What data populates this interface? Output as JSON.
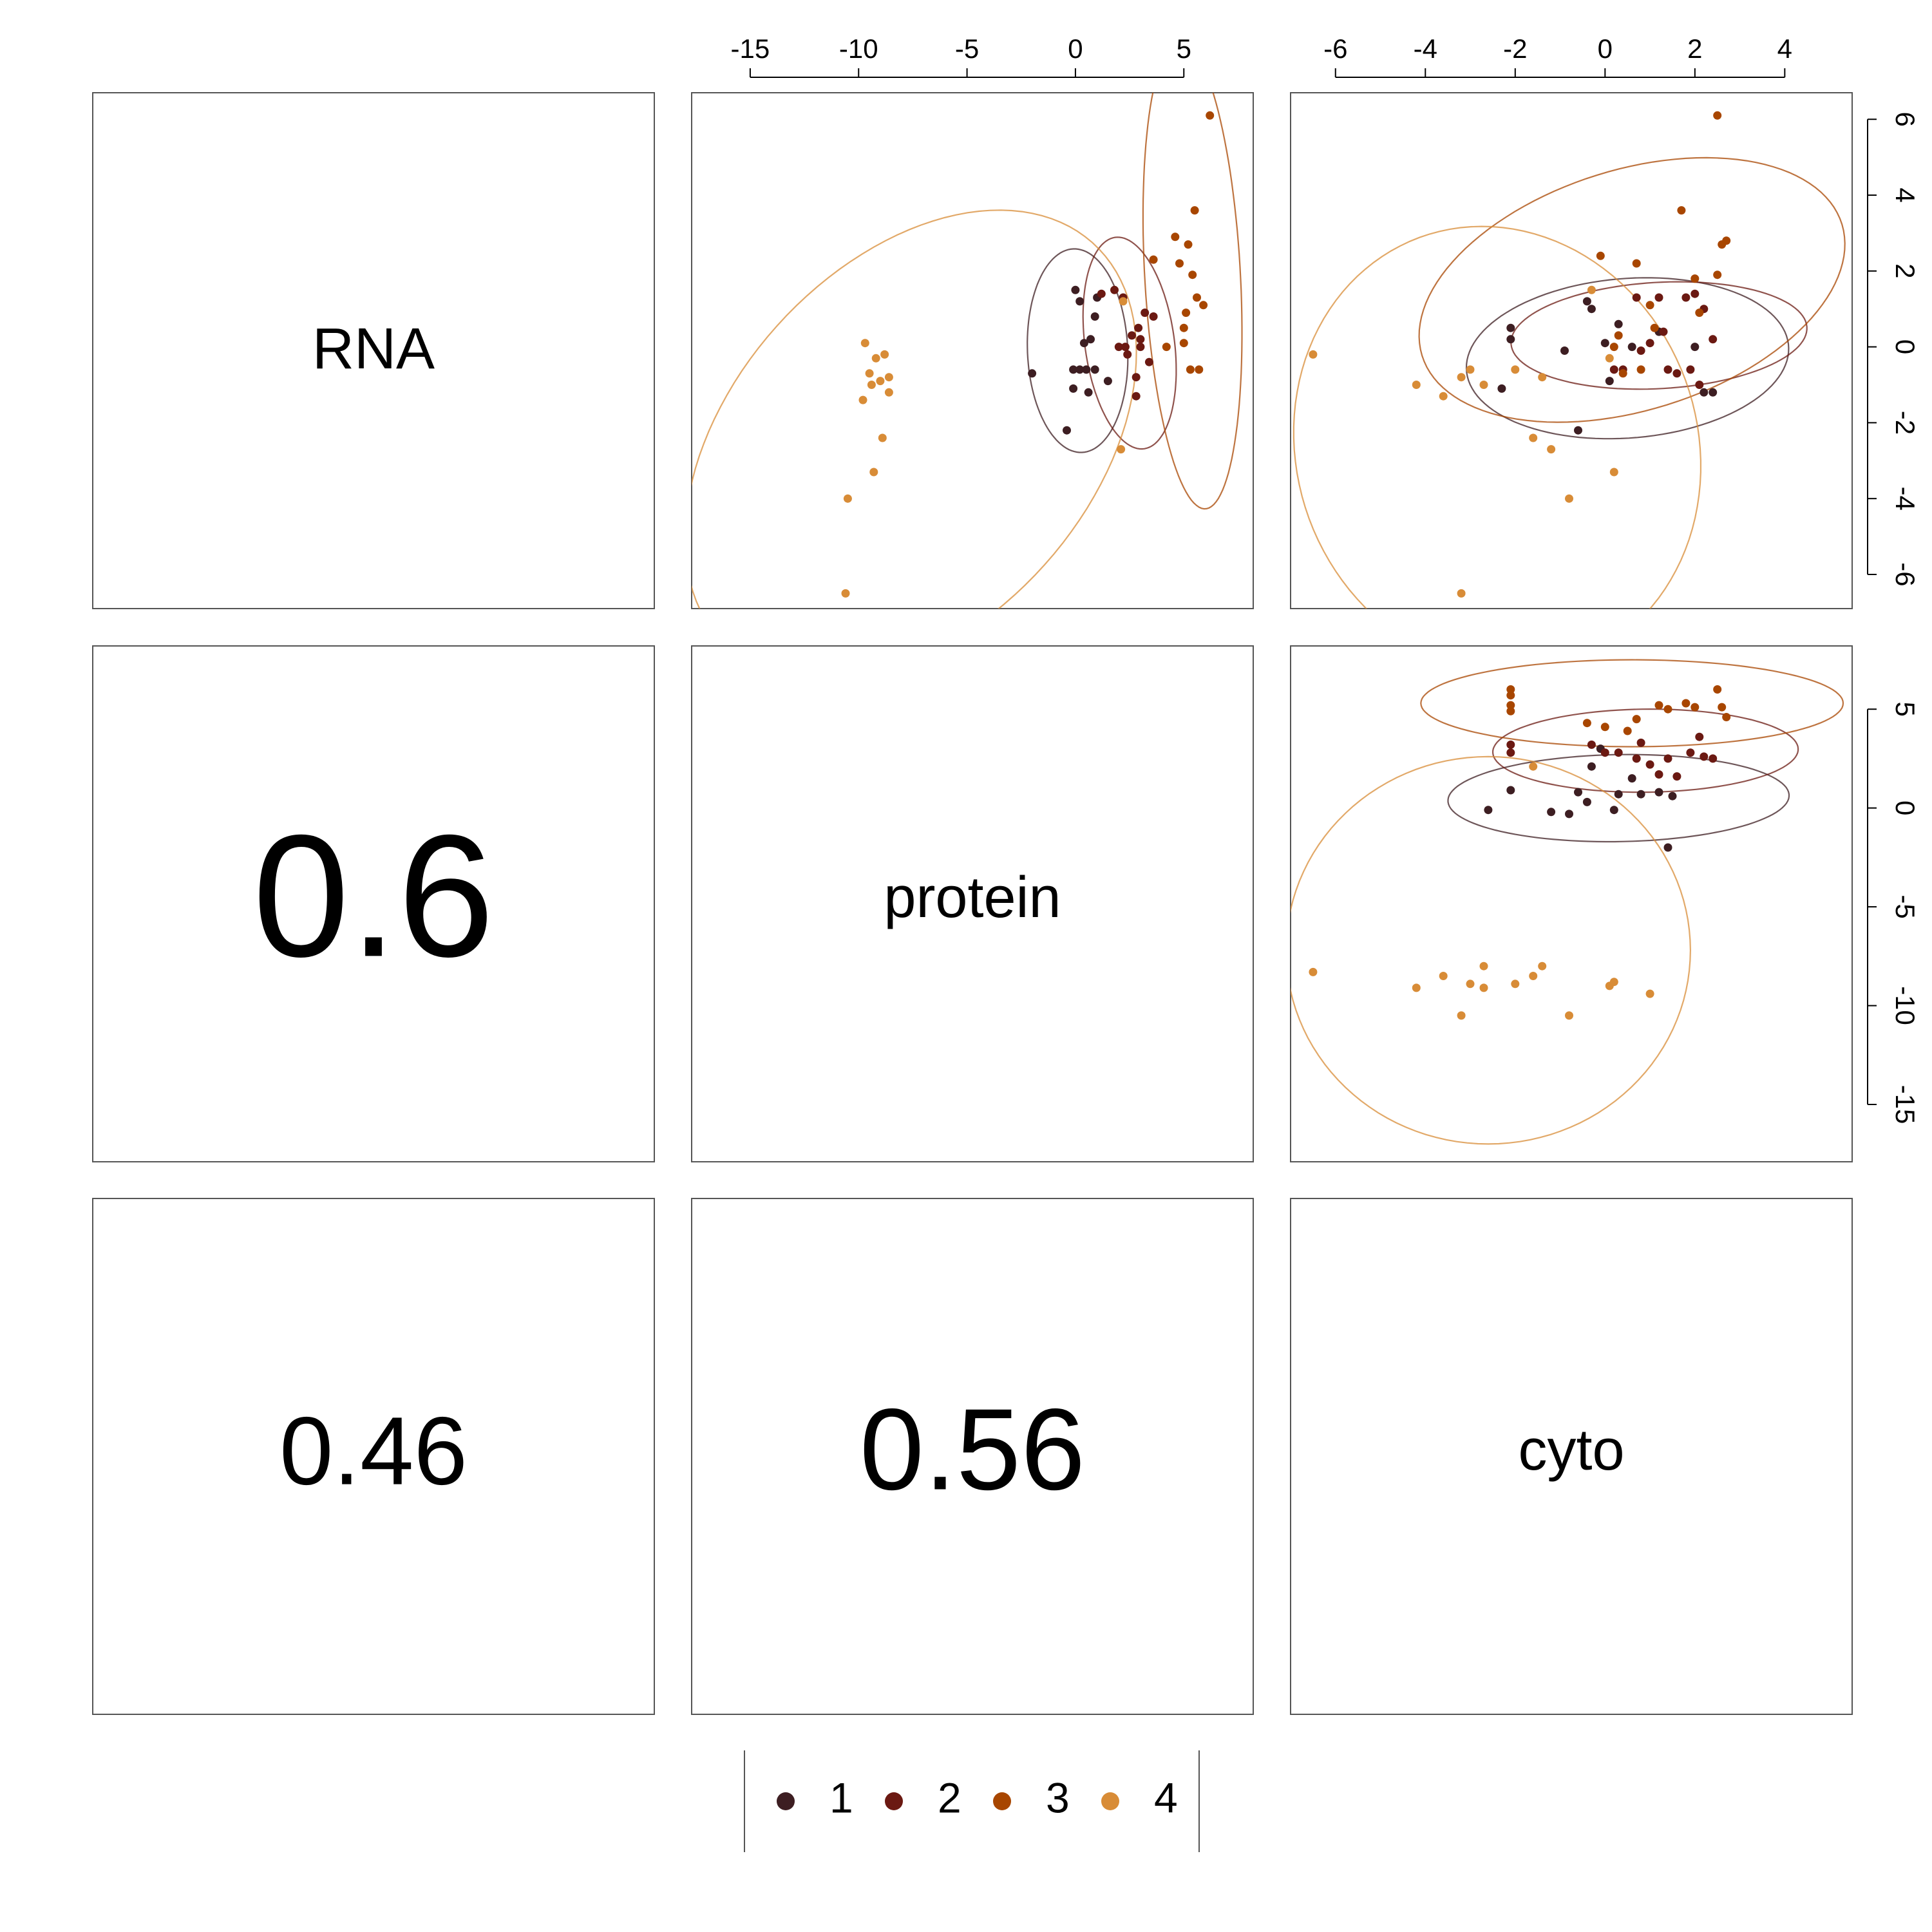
{
  "variables": [
    "RNA",
    "protein",
    "cyto"
  ],
  "correlations": {
    "protein_RNA": "0.6",
    "cyto_RNA": "0.46",
    "cyto_protein": "0.56"
  },
  "legend": {
    "entries": [
      {
        "label": "1",
        "color": "#3d1e22"
      },
      {
        "label": "2",
        "color": "#6b1912"
      },
      {
        "label": "3",
        "color": "#a84600"
      },
      {
        "label": "4",
        "color": "#d88c37"
      }
    ]
  },
  "chart_data": [
    {
      "type": "scatter",
      "id": "protein-vs-RNA",
      "xlabel": "",
      "ylabel": "",
      "x_variable": "protein",
      "y_variable": "RNA",
      "xlim": [
        -17.7,
        8.2
      ],
      "ylim": [
        -6.9,
        6.7
      ],
      "xticks": [
        -15,
        -10,
        -5,
        0,
        5
      ],
      "yticks": [],
      "x_axis_side": "top",
      "grid": false,
      "series": [
        {
          "name": "1",
          "color": "#3d1e22",
          "points": [
            [
              -2.0,
              -0.7
            ],
            [
              -0.4,
              -2.2
            ],
            [
              -0.1,
              -1.1
            ],
            [
              0.2,
              -0.6
            ],
            [
              0.4,
              0.1
            ],
            [
              0.5,
              -0.6
            ],
            [
              0.6,
              -1.2
            ],
            [
              0.7,
              0.2
            ],
            [
              0.9,
              -0.6
            ],
            [
              0.2,
              1.2
            ],
            [
              -0.1,
              -0.6
            ],
            [
              1.5,
              -0.9
            ],
            [
              0.9,
              0.8
            ],
            [
              0.0,
              1.5
            ],
            [
              1.0,
              1.3
            ]
          ]
        },
        {
          "name": "2",
          "color": "#6b1912",
          "points": [
            [
              1.2,
              1.4
            ],
            [
              2.0,
              0.0
            ],
            [
              2.2,
              1.3
            ],
            [
              2.4,
              -0.2
            ],
            [
              2.6,
              0.3
            ],
            [
              2.8,
              -1.3
            ],
            [
              2.8,
              -0.8
            ],
            [
              3.0,
              0.0
            ],
            [
              3.2,
              0.9
            ],
            [
              3.6,
              0.8
            ],
            [
              3.4,
              -0.4
            ],
            [
              2.3,
              0.0
            ],
            [
              1.8,
              1.5
            ],
            [
              2.9,
              0.5
            ],
            [
              3.0,
              0.2
            ]
          ]
        },
        {
          "name": "3",
          "color": "#a84600",
          "points": [
            [
              4.2,
              0.0
            ],
            [
              4.8,
              2.2
            ],
            [
              5.0,
              0.5
            ],
            [
              5.2,
              2.7
            ],
            [
              5.4,
              1.9
            ],
            [
              5.5,
              3.6
            ],
            [
              5.6,
              1.3
            ],
            [
              5.3,
              -0.6
            ],
            [
              5.7,
              -0.6
            ],
            [
              5.9,
              1.1
            ],
            [
              6.2,
              6.1
            ],
            [
              5.0,
              0.1
            ],
            [
              5.1,
              0.9
            ],
            [
              4.6,
              2.9
            ],
            [
              3.6,
              2.3
            ]
          ]
        },
        {
          "name": "4",
          "color": "#d88c37",
          "points": [
            [
              -9.7,
              0.1
            ],
            [
              -9.2,
              -0.3
            ],
            [
              -8.8,
              -0.2
            ],
            [
              -9.5,
              -0.7
            ],
            [
              -9.4,
              -1.0
            ],
            [
              -9.0,
              -0.9
            ],
            [
              -8.6,
              -0.8
            ],
            [
              -9.8,
              -1.4
            ],
            [
              -8.6,
              -1.2
            ],
            [
              -8.9,
              -2.4
            ],
            [
              -9.3,
              -3.3
            ],
            [
              -10.5,
              -4.0
            ],
            [
              -10.6,
              -6.5
            ],
            [
              2.1,
              -2.7
            ],
            [
              2.2,
              1.2
            ]
          ]
        }
      ],
      "ellipses": [
        {
          "group": "1",
          "cx": 0.1,
          "cy": -0.1,
          "rx": 2.3,
          "ry": 2.7,
          "angle": 12
        },
        {
          "group": "2",
          "cx": 2.5,
          "cy": 0.1,
          "rx": 2.0,
          "ry": 2.9,
          "angle": 22
        },
        {
          "group": "3",
          "cx": 5.4,
          "cy": 1.9,
          "rx": 2.2,
          "ry": 6.2,
          "angle": 6
        },
        {
          "group": "4",
          "cx": -7.6,
          "cy": -2.6,
          "rx": 10.8,
          "ry": 5.5,
          "angle": 18
        }
      ]
    },
    {
      "type": "scatter",
      "id": "cyto-vs-RNA",
      "xlabel": "",
      "ylabel": "",
      "x_variable": "cyto",
      "y_variable": "RNA",
      "xlim": [
        -7.0,
        5.5
      ],
      "ylim": [
        -6.9,
        6.7
      ],
      "xticks": [
        -6,
        -4,
        -2,
        0,
        2,
        4
      ],
      "yticks": [
        -6,
        -4,
        -2,
        0,
        2,
        4,
        6
      ],
      "x_axis_side": "top",
      "y_axis_side": "right",
      "grid": false,
      "series": [
        {
          "name": "1",
          "color": "#3d1e22",
          "points": [
            [
              -2.3,
              -1.1
            ],
            [
              -2.1,
              0.2
            ],
            [
              -2.1,
              0.5
            ],
            [
              -0.6,
              -2.2
            ],
            [
              -0.4,
              1.2
            ],
            [
              -0.3,
              1.0
            ],
            [
              0.3,
              0.6
            ],
            [
              0.0,
              0.1
            ],
            [
              0.1,
              -0.9
            ],
            [
              0.6,
              0.0
            ],
            [
              1.2,
              0.4
            ],
            [
              2.0,
              0.0
            ],
            [
              2.2,
              -1.2
            ],
            [
              2.4,
              -1.2
            ],
            [
              -0.9,
              -0.1
            ]
          ]
        },
        {
          "name": "2",
          "color": "#6b1912",
          "points": [
            [
              0.2,
              -0.6
            ],
            [
              0.4,
              -0.6
            ],
            [
              0.8,
              -0.1
            ],
            [
              1.0,
              0.1
            ],
            [
              1.2,
              1.3
            ],
            [
              1.3,
              0.4
            ],
            [
              1.4,
              -0.6
            ],
            [
              1.6,
              -0.7
            ],
            [
              1.8,
              1.3
            ],
            [
              2.0,
              1.4
            ],
            [
              2.2,
              1.0
            ],
            [
              2.4,
              0.2
            ],
            [
              2.1,
              -1.0
            ],
            [
              0.7,
              1.3
            ],
            [
              1.9,
              -0.6
            ]
          ]
        },
        {
          "name": "3",
          "color": "#a84600",
          "points": [
            [
              -0.1,
              2.4
            ],
            [
              0.7,
              2.2
            ],
            [
              1.7,
              3.6
            ],
            [
              2.5,
              6.1
            ],
            [
              2.6,
              2.7
            ],
            [
              2.7,
              2.8
            ],
            [
              2.5,
              1.9
            ],
            [
              2.0,
              1.8
            ],
            [
              1.1,
              0.5
            ],
            [
              0.8,
              -0.6
            ],
            [
              0.4,
              -0.7
            ],
            [
              0.2,
              0.0
            ],
            [
              2.1,
              0.9
            ],
            [
              1.0,
              1.1
            ],
            [
              0.3,
              0.3
            ]
          ]
        },
        {
          "name": "4",
          "color": "#d88c37",
          "points": [
            [
              -6.5,
              -0.2
            ],
            [
              -4.2,
              -1.0
            ],
            [
              -3.6,
              -1.3
            ],
            [
              -3.2,
              -0.8
            ],
            [
              -3.0,
              -0.6
            ],
            [
              -2.7,
              -1.0
            ],
            [
              -2.0,
              -0.6
            ],
            [
              -1.4,
              -0.8
            ],
            [
              -1.2,
              -2.7
            ],
            [
              -1.6,
              -2.4
            ],
            [
              -0.8,
              -4.0
            ],
            [
              -3.2,
              -6.5
            ],
            [
              0.2,
              -3.3
            ],
            [
              -0.3,
              1.5
            ],
            [
              0.1,
              -0.3
            ]
          ]
        }
      ],
      "ellipses": [
        {
          "group": "1",
          "cx": 0.5,
          "cy": -0.3,
          "rx": 3.6,
          "ry": 2.1,
          "angle": 6
        },
        {
          "group": "2",
          "cx": 1.2,
          "cy": 0.3,
          "rx": 3.3,
          "ry": 1.4,
          "angle": 4
        },
        {
          "group": "3",
          "cx": 0.6,
          "cy": 1.5,
          "rx": 5.0,
          "ry": 3.1,
          "angle": 24
        },
        {
          "group": "4",
          "cx": -2.4,
          "cy": -2.7,
          "rx": 4.5,
          "ry": 5.9,
          "angle": 8
        }
      ]
    },
    {
      "type": "scatter",
      "id": "cyto-vs-protein",
      "xlabel": "",
      "ylabel": "",
      "x_variable": "cyto",
      "y_variable": "protein",
      "xlim": [
        -7.0,
        5.5
      ],
      "ylim": [
        -17.9,
        8.2
      ],
      "xticks": [],
      "yticks": [
        -15,
        -10,
        -5,
        0,
        5
      ],
      "y_axis_side": "right",
      "grid": false,
      "series": [
        {
          "name": "1",
          "color": "#3d1e22",
          "points": [
            [
              -2.6,
              -0.1
            ],
            [
              -2.1,
              0.9
            ],
            [
              -1.2,
              -0.2
            ],
            [
              -0.8,
              -0.3
            ],
            [
              -0.6,
              0.8
            ],
            [
              -0.4,
              0.3
            ],
            [
              0.2,
              -0.1
            ],
            [
              0.3,
              0.7
            ],
            [
              0.6,
              1.5
            ],
            [
              0.8,
              0.7
            ],
            [
              1.2,
              0.8
            ],
            [
              1.4,
              -2.0
            ],
            [
              1.5,
              0.6
            ],
            [
              -0.3,
              2.1
            ],
            [
              -0.1,
              3.0
            ]
          ]
        },
        {
          "name": "2",
          "color": "#6b1912",
          "points": [
            [
              -2.1,
              3.2
            ],
            [
              -2.1,
              2.8
            ],
            [
              -0.3,
              3.2
            ],
            [
              0.0,
              2.8
            ],
            [
              0.3,
              2.8
            ],
            [
              0.7,
              2.5
            ],
            [
              0.8,
              3.3
            ],
            [
              1.2,
              1.7
            ],
            [
              1.4,
              2.5
            ],
            [
              1.9,
              2.8
            ],
            [
              2.2,
              2.6
            ],
            [
              2.4,
              2.5
            ],
            [
              2.1,
              3.6
            ],
            [
              1.0,
              2.2
            ],
            [
              1.6,
              1.6
            ]
          ]
        },
        {
          "name": "3",
          "color": "#a84600",
          "points": [
            [
              -2.1,
              6.0
            ],
            [
              -2.1,
              5.7
            ],
            [
              -2.1,
              5.2
            ],
            [
              -2.1,
              4.9
            ],
            [
              0.7,
              4.5
            ],
            [
              1.2,
              5.2
            ],
            [
              1.4,
              5.0
            ],
            [
              1.8,
              5.3
            ],
            [
              2.0,
              5.1
            ],
            [
              2.5,
              6.0
            ],
            [
              2.6,
              5.1
            ],
            [
              2.7,
              4.6
            ],
            [
              0.0,
              4.1
            ],
            [
              -0.4,
              4.3
            ],
            [
              0.5,
              3.9
            ]
          ]
        },
        {
          "name": "4",
          "color": "#d88c37",
          "points": [
            [
              -6.5,
              -8.3
            ],
            [
              -4.2,
              -9.1
            ],
            [
              -3.6,
              -8.5
            ],
            [
              -3.2,
              -10.5
            ],
            [
              -3.0,
              -8.9
            ],
            [
              -2.7,
              -8.0
            ],
            [
              -2.7,
              -9.1
            ],
            [
              -2.0,
              -8.9
            ],
            [
              -1.6,
              -8.5
            ],
            [
              -1.4,
              -8.0
            ],
            [
              -0.8,
              -10.5
            ],
            [
              0.1,
              -9.0
            ],
            [
              0.2,
              -8.8
            ],
            [
              1.0,
              -9.4
            ],
            [
              -1.6,
              2.1
            ]
          ]
        }
      ],
      "ellipses": [
        {
          "group": "1",
          "cx": 0.3,
          "cy": 0.5,
          "rx": 3.8,
          "ry": 2.2,
          "angle": 3
        },
        {
          "group": "2",
          "cx": 0.9,
          "cy": 2.9,
          "rx": 3.4,
          "ry": 2.1,
          "angle": 2
        },
        {
          "group": "3",
          "cx": 0.6,
          "cy": 5.3,
          "rx": 4.7,
          "ry": 2.2,
          "angle": 0
        },
        {
          "group": "4",
          "cx": -2.6,
          "cy": -7.2,
          "rx": 4.5,
          "ry": 9.8,
          "angle": 0
        }
      ]
    }
  ]
}
